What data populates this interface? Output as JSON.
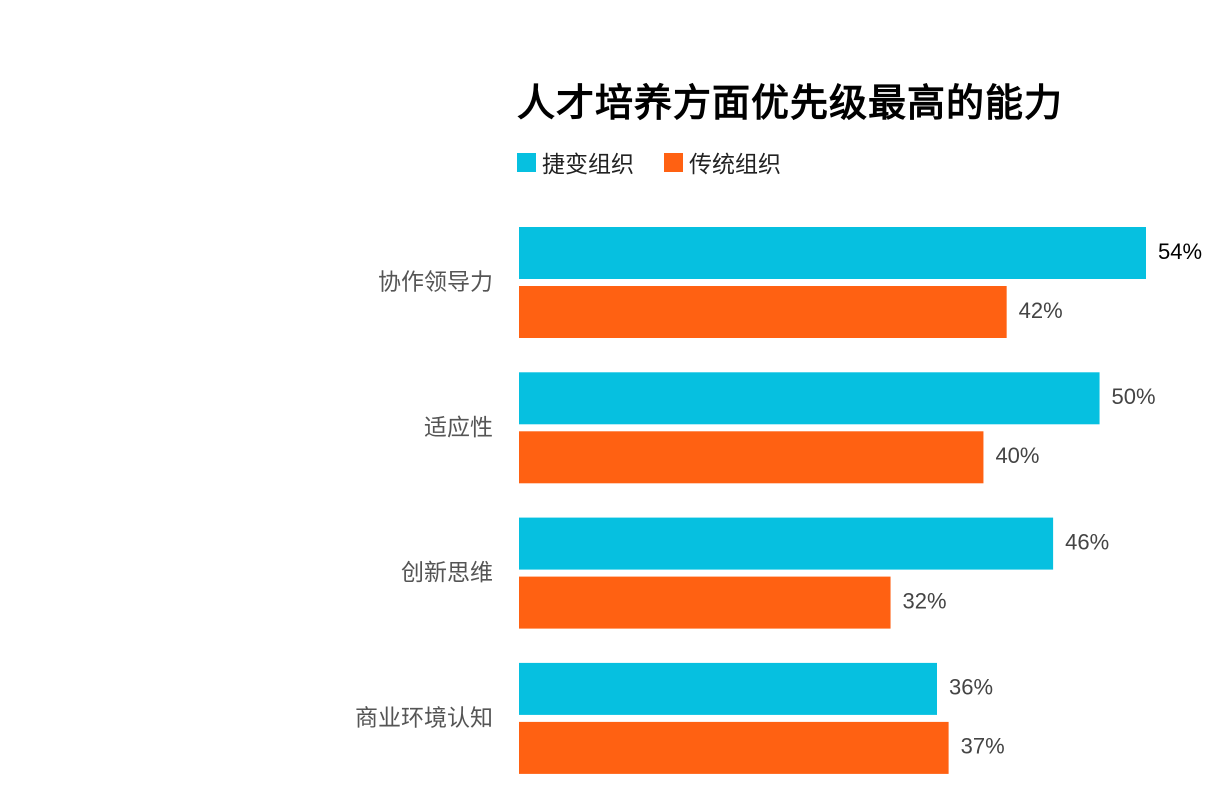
{
  "chart_data": {
    "type": "bar",
    "orientation": "horizontal",
    "title": "人才培养方面优先级最高的能力",
    "categories": [
      "协作领导力",
      "适应性",
      "创新思维",
      "商业环境认知"
    ],
    "series": [
      {
        "name": "捷变组织",
        "color": "#06C0E0",
        "values": [
          54,
          50,
          46,
          36
        ]
      },
      {
        "name": "传统组织",
        "color": "#FF6112",
        "values": [
          42,
          40,
          32,
          37
        ]
      }
    ],
    "value_suffix": "%",
    "xlim": [
      0,
      60
    ],
    "grid": false,
    "legend_position": "top-left"
  }
}
